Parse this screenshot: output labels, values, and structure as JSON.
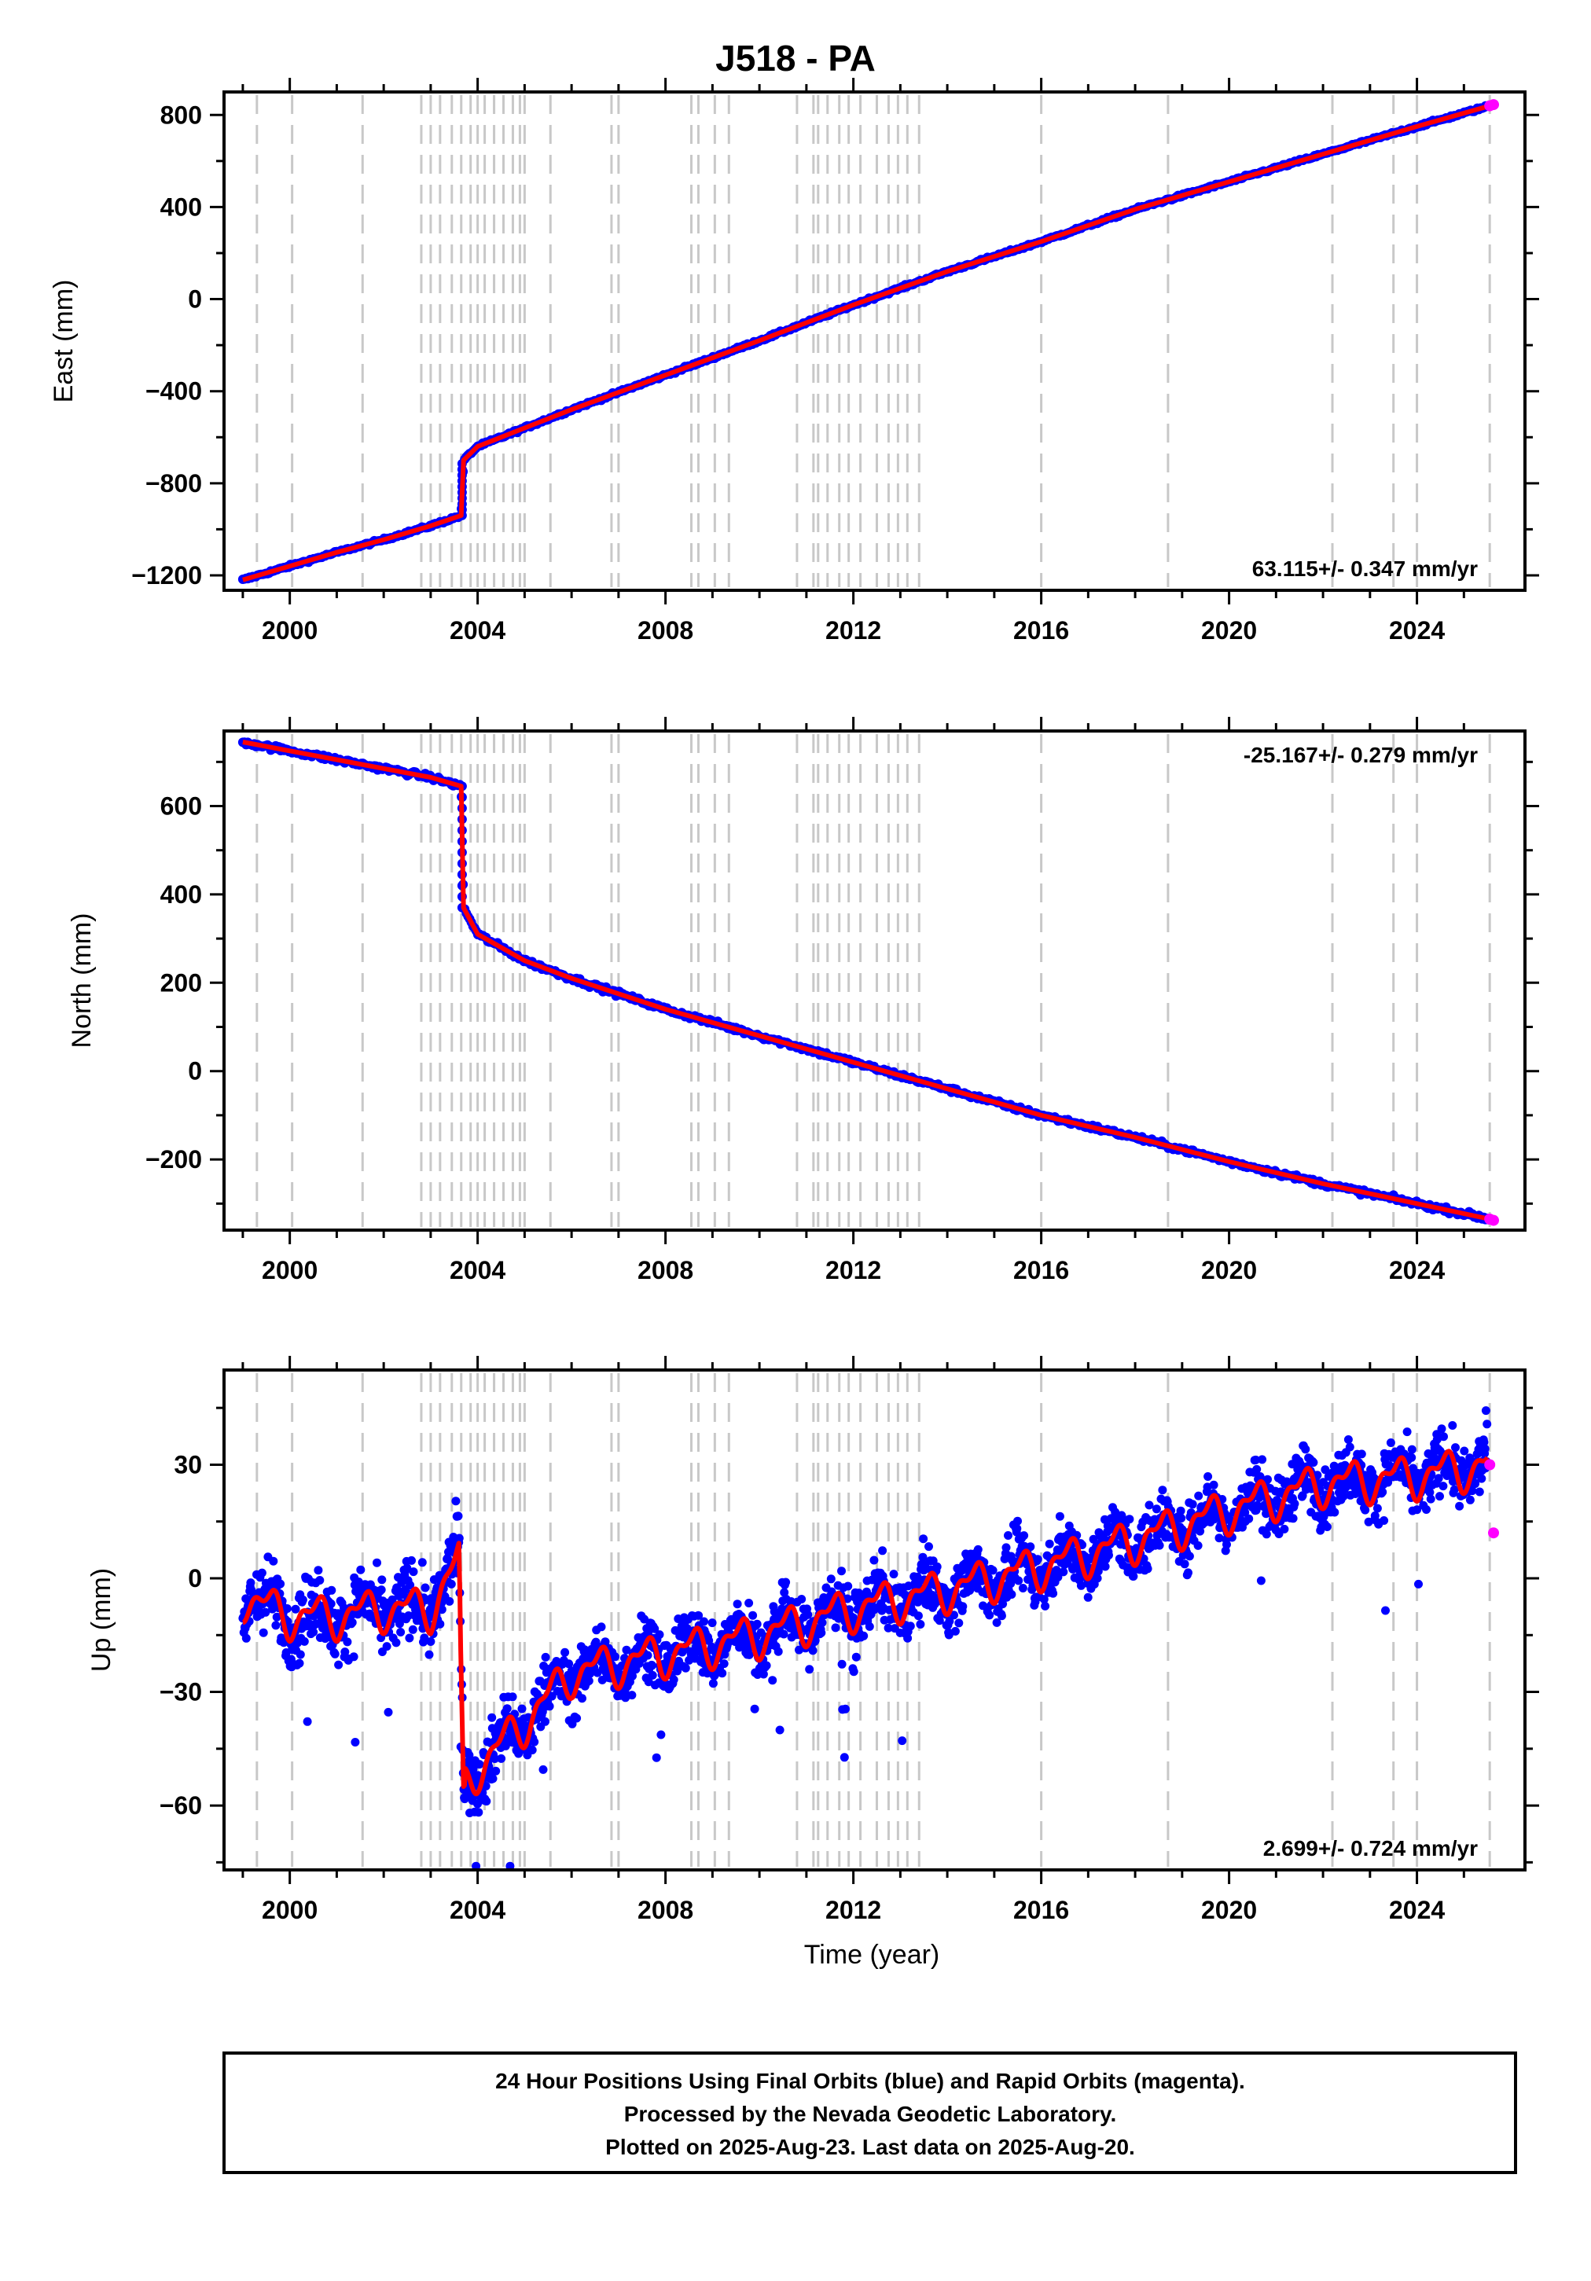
{
  "title": "J518 - PA",
  "xlabel": "Time (year)",
  "caption": [
    "24 Hour Positions Using Final Orbits (blue) and Rapid Orbits (magenta).",
    "Processed by the Nevada Geodetic Laboratory.",
    "Plotted on 2025-Aug-23. Last data on 2025-Aug-20."
  ],
  "colors": {
    "final": "#0000ff",
    "rapid": "#ff00ff",
    "model": "#ff0000",
    "events": "#c8c8c8",
    "frame": "#000000"
  },
  "chart_data": [
    {
      "type": "scatter",
      "ylabel": "East (mm)",
      "rate_label": "63.115+/- 0.347 mm/yr",
      "xlim": [
        1998.6,
        2026.3
      ],
      "ylim": [
        -1265,
        900
      ],
      "xticks": [
        2000,
        2004,
        2008,
        2012,
        2016,
        2020,
        2024
      ],
      "yticks": [
        -1200,
        -800,
        -400,
        0,
        400,
        800
      ],
      "ytick_labels": [
        "−1200",
        "−800",
        "−400",
        "0",
        "400",
        "800"
      ],
      "series": [
        {
          "role": "final",
          "x": [
            1999.0,
            2000.0,
            2001.0,
            2002.0,
            2003.0,
            2003.65,
            2003.7,
            2004.0,
            2005.0,
            2006.0,
            2008.0,
            2010.0,
            2012.0,
            2014.0,
            2016.0,
            2018.0,
            2020.0,
            2022.0,
            2024.0,
            2025.55
          ],
          "y": [
            -1220,
            -1160,
            -1100,
            -1045,
            -985,
            -940,
            -700,
            -640,
            -560,
            -480,
            -330,
            -180,
            -25,
            120,
            250,
            390,
            510,
            630,
            750,
            840
          ]
        },
        {
          "role": "rapid",
          "x": [
            2025.55,
            2025.63
          ],
          "y": [
            840,
            845
          ]
        }
      ]
    },
    {
      "type": "scatter",
      "ylabel": "North (mm)",
      "rate_label": "-25.167+/- 0.279 mm/yr",
      "xlim": [
        1998.6,
        2026.3
      ],
      "ylim": [
        -360,
        770
      ],
      "xticks": [
        2000,
        2004,
        2008,
        2012,
        2016,
        2020,
        2024
      ],
      "yticks": [
        -200,
        0,
        200,
        400,
        600
      ],
      "ytick_labels": [
        "−200",
        "0",
        "200",
        "400",
        "600"
      ],
      "series": [
        {
          "role": "final",
          "x": [
            1999.0,
            2000.0,
            2001.0,
            2002.0,
            2003.0,
            2003.65,
            2003.7,
            2004.0,
            2005.0,
            2006.0,
            2008.0,
            2010.0,
            2012.0,
            2014.0,
            2016.0,
            2018.0,
            2020.0,
            2022.0,
            2024.0,
            2025.55
          ],
          "y": [
            745,
            725,
            705,
            685,
            665,
            645,
            370,
            310,
            250,
            210,
            140,
            80,
            20,
            -40,
            -100,
            -150,
            -205,
            -255,
            -300,
            -335
          ]
        },
        {
          "role": "rapid",
          "x": [
            2025.55,
            2025.63
          ],
          "y": [
            -335,
            -338
          ]
        }
      ]
    },
    {
      "type": "scatter",
      "ylabel": "Up (mm)",
      "rate_label": "2.699+/- 0.724 mm/yr",
      "xlim": [
        1998.6,
        2026.3
      ],
      "ylim": [
        -77,
        55
      ],
      "xticks": [
        2000,
        2004,
        2008,
        2012,
        2016,
        2020,
        2024
      ],
      "yticks": [
        -60,
        -30,
        0,
        30
      ],
      "ytick_labels": [
        "−60",
        "−30",
        "0",
        "30"
      ],
      "series": [
        {
          "role": "model",
          "x": [
            1999.0,
            2000.0,
            2001.0,
            2002.0,
            2003.0,
            2003.6,
            2003.7,
            2004.0,
            2005.0,
            2006.0,
            2008.0,
            2010.0,
            2012.0,
            2014.0,
            2016.0,
            2018.0,
            2020.0,
            2022.0,
            2024.0,
            2025.5
          ],
          "y": [
            -5,
            -10,
            -10,
            -8,
            -8,
            5,
            -55,
            -50,
            -38,
            -25,
            -20,
            -15,
            -8,
            -3,
            3,
            10,
            18,
            25,
            27,
            30
          ]
        },
        {
          "role": "rapid",
          "x": [
            2025.55,
            2025.63
          ],
          "y": [
            30,
            12
          ]
        }
      ]
    }
  ]
}
